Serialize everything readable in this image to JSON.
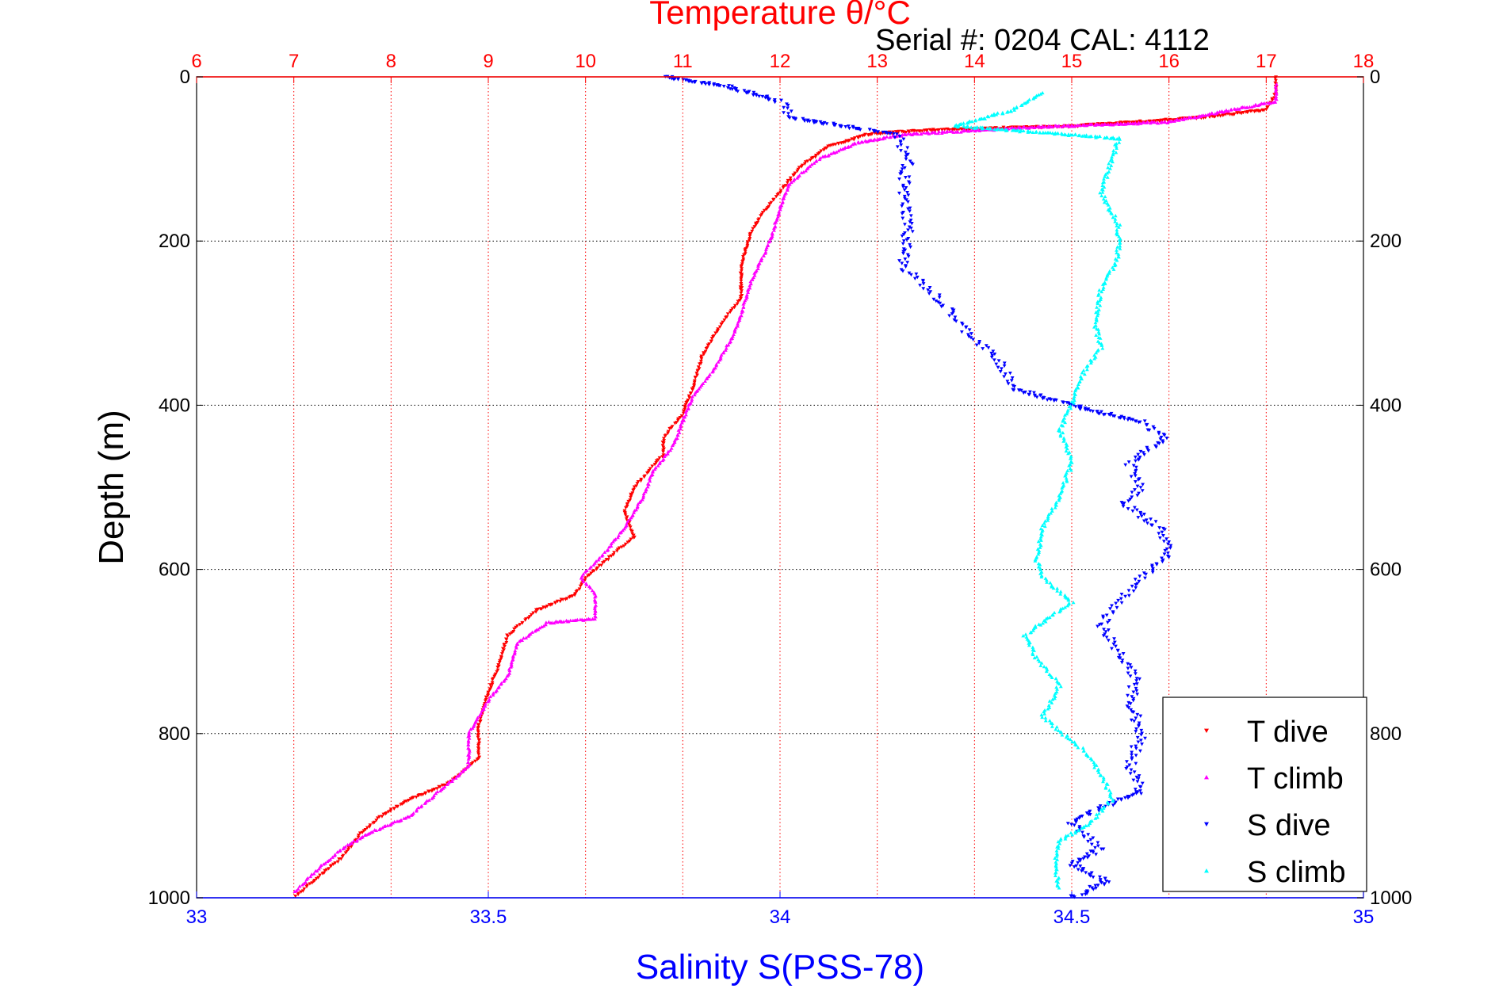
{
  "chart_data": {
    "type": "scatter",
    "title": "Temperature θ/°C",
    "subtitle": "Serial #: 0204  CAL: 4112",
    "ylabel": "Depth (m)",
    "xlabel": "Salinity S(PSS-78)",
    "ylim": [
      0,
      1000
    ],
    "y_reversed": true,
    "temperature_axis": {
      "position": "top",
      "range": [
        6,
        18
      ],
      "ticks": [
        "6",
        "7",
        "8",
        "9",
        "10",
        "11",
        "12",
        "13",
        "14",
        "15",
        "16",
        "17",
        "18"
      ],
      "color": "#ff0000"
    },
    "salinity_axis": {
      "position": "bottom",
      "range": [
        33,
        35
      ],
      "ticks": [
        "33",
        "33.5",
        "34",
        "34.5",
        "35"
      ],
      "color": "#0000ff"
    },
    "depth_ticks_left": [
      "0",
      "200",
      "400",
      "600",
      "800",
      "1000"
    ],
    "depth_ticks_right": [
      "0",
      "200",
      "400",
      "600",
      "800",
      "1000"
    ],
    "grid": true,
    "legend_placement": "bottom-right",
    "series": [
      {
        "name": "T dive",
        "axis": "temperature",
        "color": "#ff0000",
        "marker": "triangle-down",
        "points": [
          [
            17.1,
            0
          ],
          [
            17.1,
            20
          ],
          [
            17.0,
            40
          ],
          [
            16.3,
            50
          ],
          [
            15.0,
            60
          ],
          [
            13.5,
            65
          ],
          [
            12.9,
            70
          ],
          [
            12.5,
            85
          ],
          [
            12.2,
            110
          ],
          [
            12.0,
            140
          ],
          [
            11.8,
            170
          ],
          [
            11.7,
            190
          ],
          [
            11.6,
            230
          ],
          [
            11.6,
            270
          ],
          [
            11.4,
            300
          ],
          [
            11.2,
            340
          ],
          [
            11.1,
            380
          ],
          [
            11.0,
            410
          ],
          [
            10.8,
            440
          ],
          [
            10.8,
            460
          ],
          [
            10.5,
            500
          ],
          [
            10.4,
            530
          ],
          [
            10.5,
            560
          ],
          [
            10.3,
            580
          ],
          [
            10.0,
            610
          ],
          [
            9.9,
            630
          ],
          [
            9.5,
            650
          ],
          [
            9.2,
            680
          ],
          [
            9.1,
            720
          ],
          [
            9.0,
            750
          ],
          [
            8.9,
            790
          ],
          [
            8.9,
            830
          ],
          [
            8.6,
            860
          ],
          [
            8.2,
            880
          ],
          [
            7.9,
            900
          ],
          [
            7.7,
            920
          ],
          [
            7.5,
            950
          ],
          [
            7.2,
            980
          ],
          [
            7.0,
            1000
          ]
        ]
      },
      {
        "name": "T climb",
        "axis": "temperature",
        "color": "#ff00ff",
        "marker": "triangle-up",
        "points": [
          [
            17.1,
            10
          ],
          [
            17.1,
            30
          ],
          [
            16.0,
            55
          ],
          [
            14.5,
            62
          ],
          [
            13.3,
            70
          ],
          [
            12.8,
            80
          ],
          [
            12.4,
            100
          ],
          [
            12.1,
            130
          ],
          [
            12.0,
            160
          ],
          [
            11.9,
            200
          ],
          [
            11.7,
            250
          ],
          [
            11.6,
            290
          ],
          [
            11.5,
            320
          ],
          [
            11.3,
            360
          ],
          [
            11.1,
            390
          ],
          [
            11.0,
            420
          ],
          [
            10.9,
            450
          ],
          [
            10.7,
            480
          ],
          [
            10.6,
            510
          ],
          [
            10.4,
            550
          ],
          [
            10.2,
            580
          ],
          [
            9.95,
            610
          ],
          [
            10.1,
            630
          ],
          [
            10.1,
            660
          ],
          [
            9.6,
            665
          ],
          [
            9.3,
            690
          ],
          [
            9.2,
            730
          ],
          [
            9.0,
            760
          ],
          [
            8.8,
            800
          ],
          [
            8.8,
            840
          ],
          [
            8.5,
            870
          ],
          [
            8.2,
            900
          ],
          [
            7.8,
            920
          ],
          [
            7.5,
            940
          ],
          [
            7.2,
            970
          ],
          [
            7.0,
            995
          ]
        ]
      },
      {
        "name": "S dive",
        "axis": "salinity",
        "color": "#0000ff",
        "marker": "triangle-down",
        "points": [
          [
            33.8,
            0
          ],
          [
            33.9,
            10
          ],
          [
            33.95,
            20
          ],
          [
            34.0,
            30
          ],
          [
            34.02,
            50
          ],
          [
            34.2,
            70
          ],
          [
            34.22,
            100
          ],
          [
            34.21,
            140
          ],
          [
            34.22,
            180
          ],
          [
            34.21,
            230
          ],
          [
            34.27,
            270
          ],
          [
            34.32,
            310
          ],
          [
            34.38,
            350
          ],
          [
            34.4,
            380
          ],
          [
            34.5,
            400
          ],
          [
            34.62,
            420
          ],
          [
            34.66,
            440
          ],
          [
            34.6,
            470
          ],
          [
            34.62,
            500
          ],
          [
            34.59,
            520
          ],
          [
            34.65,
            550
          ],
          [
            34.67,
            580
          ],
          [
            34.62,
            610
          ],
          [
            34.58,
            640
          ],
          [
            34.55,
            670
          ],
          [
            34.58,
            700
          ],
          [
            34.61,
            730
          ],
          [
            34.6,
            760
          ],
          [
            34.62,
            800
          ],
          [
            34.6,
            840
          ],
          [
            34.62,
            870
          ],
          [
            34.55,
            890
          ],
          [
            34.5,
            910
          ],
          [
            34.55,
            940
          ],
          [
            34.5,
            960
          ],
          [
            34.56,
            980
          ],
          [
            34.5,
            1000
          ]
        ]
      },
      {
        "name": "S climb",
        "axis": "salinity",
        "color": "#00ffff",
        "marker": "triangle-up",
        "points": [
          [
            34.45,
            20
          ],
          [
            34.4,
            40
          ],
          [
            34.3,
            60
          ],
          [
            34.58,
            75
          ],
          [
            34.57,
            100
          ],
          [
            34.55,
            140
          ],
          [
            34.58,
            180
          ],
          [
            34.58,
            220
          ],
          [
            34.55,
            260
          ],
          [
            34.54,
            300
          ],
          [
            34.55,
            330
          ],
          [
            34.52,
            360
          ],
          [
            34.5,
            400
          ],
          [
            34.48,
            430
          ],
          [
            34.5,
            470
          ],
          [
            34.48,
            510
          ],
          [
            34.45,
            550
          ],
          [
            34.44,
            590
          ],
          [
            34.45,
            610
          ],
          [
            34.5,
            640
          ],
          [
            34.42,
            680
          ],
          [
            34.44,
            710
          ],
          [
            34.48,
            740
          ],
          [
            34.45,
            780
          ],
          [
            34.52,
            820
          ],
          [
            34.55,
            850
          ],
          [
            34.57,
            880
          ],
          [
            34.53,
            910
          ],
          [
            34.48,
            930
          ],
          [
            34.47,
            960
          ],
          [
            34.48,
            990
          ]
        ]
      }
    ]
  }
}
